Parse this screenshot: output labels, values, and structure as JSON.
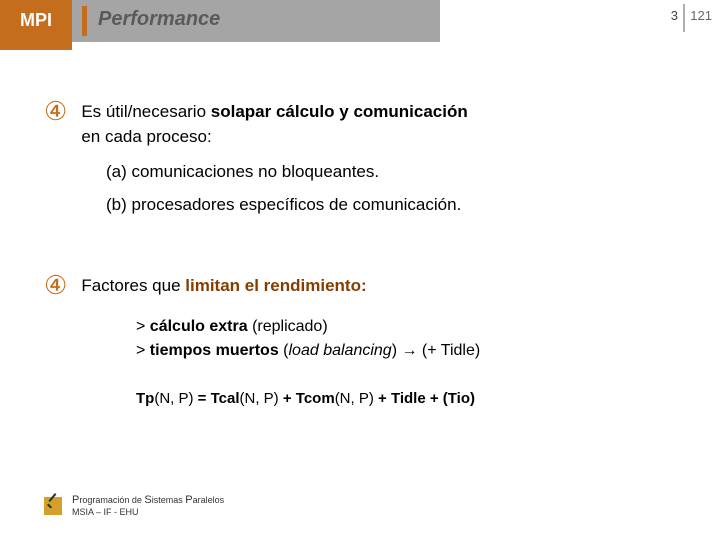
{
  "header": {
    "mpi": "MPI",
    "title": "Performance",
    "page_section": "3",
    "page_total": "121"
  },
  "block1": {
    "bullet_glyph": "④",
    "line1_pre": "Es útil/necesario ",
    "line1_bold": "solapar cálculo y comunicación",
    "line2": "en cada proceso:",
    "sub_a": "(a) comunicaciones no bloqueantes.",
    "sub_b": "(b) procesadores específicos de comunicación."
  },
  "block2": {
    "bullet_glyph": "④",
    "line1_pre": "Factores que ",
    "line1_bold": "limitan el rendimiento:",
    "gt1_pre": "> ",
    "gt1_b": "cálculo extra",
    "gt1_post": " (replicado)",
    "gt2_pre": "> ",
    "gt2_b": "tiempos muertos",
    "gt2_paren_open": " (",
    "gt2_i": "load balancing",
    "gt2_paren_close": ") ",
    "gt2_arrow": "→",
    "gt2_post": " (+ Tidle)",
    "eq_b1": "Tp",
    "eq_p1": "(N, P) ",
    "eq_b2": "= Tcal",
    "eq_p2": "(N, P) ",
    "eq_b3": "+ Tcom",
    "eq_p3": "(N, P) ",
    "eq_b4": "+ Tidle + (Tio)"
  },
  "footer": {
    "line1_P": "P",
    "line1_rogramacion": "rogramación de ",
    "line1_S": "S",
    "line1_istemas": "istemas ",
    "line1_P2": "P",
    "line1_aralelos": "aralelos",
    "line2": "MSIA – IF - EHU"
  }
}
